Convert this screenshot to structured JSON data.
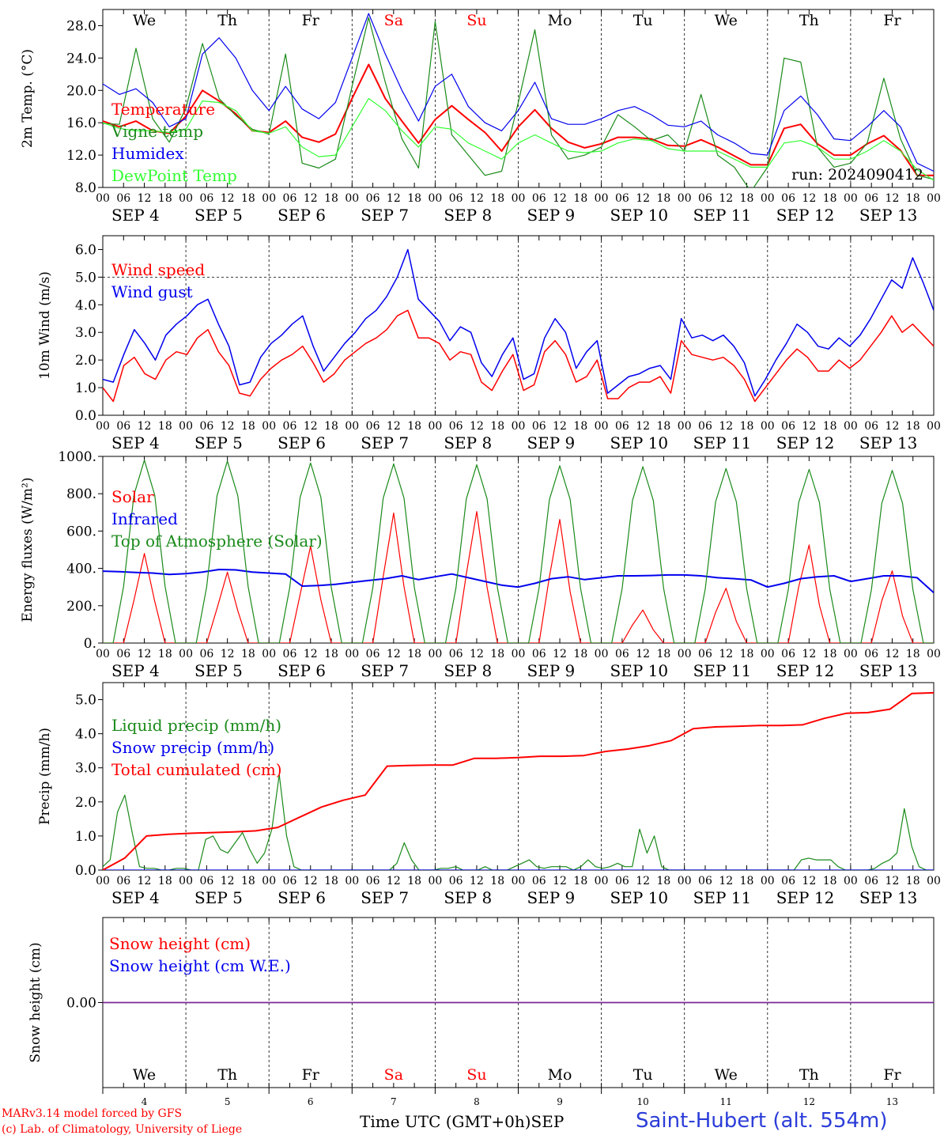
{
  "footer": {
    "credit_line1": "MARv3.14 model forced by GFS",
    "credit_line2": "(c) Lab. of Climatology, University of Liege",
    "x_title": "Time UTC (GMT+0h)",
    "x_month": "SEP",
    "station": "Saint-Hubert (alt. 554m)"
  },
  "axis": {
    "hour_ticks": [
      "00",
      "06",
      "12",
      "18"
    ],
    "days": [
      "4",
      "5",
      "6",
      "7",
      "8",
      "9",
      "10",
      "11",
      "12",
      "13"
    ],
    "month": "SEP",
    "weekdays": [
      "We",
      "Th",
      "Fr",
      "Sa",
      "Su",
      "Mo",
      "Tu",
      "We",
      "Th",
      "Fr"
    ],
    "weekend_color": "#ff0000"
  },
  "colors": {
    "red": "#ff0000",
    "green": "#1a8a1a",
    "blue": "#0000ee",
    "lightgreen": "#33ff33",
    "purple": "#7a2a9a"
  },
  "chart_data": [
    {
      "type": "line",
      "ylabel": "2m Temp. (°C)",
      "ylim": [
        8,
        30
      ],
      "yticks": [
        "8.0",
        "12.0",
        "16.0",
        "20.0",
        "24.0",
        "28.0"
      ],
      "annotation": "run: 2024090412",
      "x_hours_start": "SEP 4 00",
      "x_step_hours": 6,
      "series": [
        {
          "name": "Temperature",
          "color": "#ff0000",
          "values": [
            16.2,
            15.5,
            16.2,
            15.0,
            14.7,
            16.8,
            20.0,
            18.7,
            17.1,
            15.0,
            14.8,
            16.2,
            14.2,
            13.6,
            14.6,
            19.0,
            23.2,
            19.0,
            16.2,
            13.5,
            16.4,
            18.1,
            16.4,
            14.8,
            12.5,
            15.5,
            17.6,
            15.3,
            13.6,
            12.9,
            13.4,
            14.2,
            14.2,
            14.0,
            13.2,
            13.1,
            13.9,
            13.0,
            11.9,
            10.8,
            10.8,
            15.3,
            15.8,
            13.4,
            12.0,
            12.0,
            13.4,
            14.4,
            12.6,
            9.5,
            9.5
          ]
        },
        {
          "name": "Vigne temp",
          "color": "#1a8a1a",
          "values": [
            15.9,
            15.8,
            25.2,
            16.5,
            13.6,
            17.8,
            25.8,
            19.0,
            16.9,
            15.2,
            14.6,
            24.5,
            11.0,
            10.4,
            11.5,
            20.5,
            29.0,
            21.0,
            14.0,
            10.4,
            28.5,
            14.5,
            12.0,
            9.5,
            10.0,
            18.5,
            27.5,
            14.5,
            11.5,
            12.0,
            13.0,
            17.0,
            15.5,
            13.8,
            14.5,
            12.5,
            19.5,
            12.0,
            10.5,
            7.5,
            10.5,
            24.0,
            23.5,
            13.0,
            10.5,
            11.0,
            13.5,
            21.5,
            14.0,
            9.5,
            9.0
          ]
        },
        {
          "name": "Humidex",
          "color": "#0000ee",
          "values": [
            20.8,
            19.5,
            20.2,
            18.5,
            15.5,
            16.5,
            24.5,
            26.5,
            24.0,
            20.0,
            17.5,
            20.5,
            17.7,
            16.5,
            18.5,
            24.0,
            29.5,
            24.5,
            20.0,
            16.2,
            20.5,
            22.0,
            18.0,
            16.0,
            15.0,
            17.5,
            21.0,
            16.5,
            15.8,
            15.8,
            16.5,
            17.5,
            18.0,
            17.0,
            15.7,
            15.5,
            16.2,
            14.5,
            13.5,
            12.2,
            12.0,
            17.5,
            19.3,
            17.0,
            14.0,
            13.8,
            15.5,
            17.5,
            15.5,
            11.0,
            10.0
          ]
        },
        {
          "name": "DewPoint Temp",
          "color": "#33ff33",
          "values": [
            16.0,
            15.3,
            15.0,
            15.0,
            14.8,
            15.2,
            18.7,
            18.5,
            17.5,
            15.0,
            14.7,
            15.5,
            13.0,
            11.8,
            12.0,
            15.5,
            19.0,
            17.5,
            15.0,
            13.0,
            15.5,
            15.2,
            13.5,
            12.5,
            11.5,
            13.5,
            14.5,
            13.5,
            12.5,
            12.3,
            12.5,
            13.5,
            14.0,
            13.8,
            12.8,
            12.5,
            12.5,
            12.5,
            11.5,
            10.5,
            10.5,
            13.5,
            13.8,
            13.0,
            11.5,
            11.5,
            12.5,
            13.8,
            12.5,
            10.2,
            8.9
          ]
        }
      ]
    },
    {
      "type": "line",
      "ylabel": "10m Wind (m/s)",
      "ylim": [
        0,
        6.5
      ],
      "yticks": [
        "0.0",
        "1.0",
        "2.0",
        "3.0",
        "4.0",
        "5.0",
        "6.0"
      ],
      "series": [
        {
          "name": "Wind speed",
          "color": "#ff0000",
          "values": [
            1.0,
            0.5,
            1.8,
            2.1,
            1.5,
            1.3,
            2.0,
            2.3,
            2.2,
            2.8,
            3.1,
            2.3,
            1.8,
            0.8,
            0.7,
            1.3,
            1.7,
            2.0,
            2.2,
            2.5,
            1.9,
            1.2,
            1.5,
            2.0,
            2.3,
            2.6,
            2.8,
            3.1,
            3.6,
            3.8,
            2.8,
            2.8,
            2.6,
            2.0,
            2.3,
            2.2,
            1.2,
            0.9,
            1.6,
            2.2,
            0.9,
            1.1,
            2.3,
            2.7,
            2.2,
            1.2,
            1.4,
            2.0,
            0.6,
            0.6,
            1.0,
            1.2,
            1.2,
            1.4,
            0.8,
            2.7,
            2.2,
            2.1,
            2.0,
            2.1,
            1.8,
            1.3,
            0.5,
            1.0,
            1.5,
            2.0,
            2.4,
            2.1,
            1.6,
            1.6,
            2.0,
            1.7,
            2.0,
            2.5,
            3.0,
            3.6,
            3.0,
            3.3,
            2.9,
            2.5
          ]
        },
        {
          "name": "Wind gust",
          "color": "#0000ee",
          "values": [
            1.3,
            1.2,
            2.2,
            3.1,
            2.6,
            2.0,
            2.9,
            3.3,
            3.6,
            4.0,
            4.2,
            3.3,
            2.5,
            1.1,
            1.2,
            2.1,
            2.6,
            2.9,
            3.3,
            3.6,
            2.5,
            1.6,
            2.1,
            2.6,
            3.0,
            3.5,
            3.8,
            4.3,
            5.0,
            6.0,
            4.2,
            3.8,
            3.4,
            2.7,
            3.2,
            3.0,
            1.9,
            1.4,
            2.2,
            2.8,
            1.3,
            1.5,
            2.8,
            3.5,
            3.0,
            1.7,
            2.3,
            2.7,
            0.8,
            1.1,
            1.4,
            1.5,
            1.7,
            1.8,
            1.3,
            3.5,
            2.8,
            2.9,
            2.7,
            2.9,
            2.5,
            1.9,
            0.7,
            1.3,
            2.0,
            2.6,
            3.3,
            3.0,
            2.5,
            2.4,
            2.8,
            2.5,
            2.9,
            3.5,
            4.2,
            4.9,
            4.6,
            5.7,
            4.8,
            3.8
          ]
        }
      ]
    },
    {
      "type": "line",
      "ylabel": "Energy fluxes (W/m²)",
      "ylim": [
        0,
        1000
      ],
      "yticks": [
        "0.",
        "200.",
        "400.",
        "600.",
        "800.",
        "1000."
      ],
      "series": [
        {
          "name": "Solar",
          "color": "#ff0000",
          "peaks": [
            480,
            380,
            520,
            700,
            710,
            670,
            180,
            300,
            540,
            400
          ]
        },
        {
          "name": "Infrared",
          "color": "#0000ee",
          "values": [
            385,
            382,
            378,
            375,
            368,
            372,
            380,
            394,
            392,
            380,
            375,
            370,
            305,
            308,
            315,
            325,
            335,
            345,
            360,
            340,
            355,
            370,
            350,
            330,
            310,
            300,
            320,
            345,
            355,
            340,
            350,
            360,
            360,
            362,
            365,
            365,
            360,
            350,
            345,
            338,
            300,
            320,
            345,
            355,
            360,
            330,
            345,
            360,
            360,
            350,
            270
          ]
        },
        {
          "name": "Top of Atmosphere (Solar)",
          "color": "#1a8a1a",
          "peaks": [
            980,
            975,
            965,
            960,
            955,
            950,
            945,
            935,
            930,
            925
          ]
        }
      ]
    },
    {
      "type": "line",
      "ylabel": "Precip (mm/h)",
      "ylim": [
        0,
        5.5
      ],
      "yticks": [
        "0.0",
        "1.0",
        "2.0",
        "3.0",
        "4.0",
        "5.0"
      ],
      "series": [
        {
          "name": "Liquid precip (mm/h)",
          "color": "#1a8a1a",
          "values": [
            0.1,
            0.3,
            1.7,
            2.2,
            1.1,
            0.1,
            0.05,
            0.05,
            0.0,
            0.0,
            0.05,
            0.05,
            0.0,
            0.0,
            0.9,
            1.0,
            0.6,
            0.5,
            0.8,
            1.1,
            0.6,
            0.2,
            0.5,
            1.2,
            2.8,
            1.0,
            0.1,
            0.0,
            0.0,
            0.0,
            0.0,
            0.0,
            0.0,
            0.0,
            0.0,
            0.0,
            0.0,
            0.0,
            0.0,
            0.0,
            0.2,
            0.8,
            0.3,
            0.0,
            0.0,
            0.0,
            0.05,
            0.05,
            0.1,
            0.0,
            0.0,
            0.0,
            0.1,
            0.0,
            0.0,
            0.0,
            0.1,
            0.2,
            0.3,
            0.1,
            0.05,
            0.1,
            0.1,
            0.1,
            0.0,
            0.1,
            0.3,
            0.1,
            0.05,
            0.1,
            0.2,
            0.1,
            0.1,
            1.2,
            0.5,
            1.0,
            0.1,
            0.0,
            0.0,
            0.0,
            0.0,
            0.0,
            0.0,
            0.0,
            0.0,
            0.0,
            0.0,
            0.0,
            0.0,
            0.0,
            0.0,
            0.0,
            0.0,
            0.0,
            0.0,
            0.3,
            0.35,
            0.3,
            0.3,
            0.3,
            0.1,
            0.0,
            0.0,
            0.0,
            0.0,
            0.05,
            0.2,
            0.3,
            0.5,
            1.8,
            0.7,
            0.1,
            0.0,
            0.0
          ]
        },
        {
          "name": "Snow precip (mm/h)",
          "color": "#0000ee",
          "values": [
            0,
            0
          ]
        },
        {
          "name": "Total cumulated (cm)",
          "color": "#ff0000",
          "values": [
            0.0,
            0.35,
            1.0,
            1.05,
            1.08,
            1.1,
            1.12,
            1.15,
            1.25,
            1.55,
            1.85,
            2.05,
            2.2,
            3.05,
            3.07,
            3.08,
            3.08,
            3.28,
            3.28,
            3.3,
            3.34,
            3.34,
            3.36,
            3.48,
            3.55,
            3.65,
            3.8,
            4.15,
            4.2,
            4.22,
            4.24,
            4.24,
            4.26,
            4.45,
            4.6,
            4.62,
            4.72,
            5.18,
            5.2
          ]
        }
      ]
    },
    {
      "type": "line",
      "ylabel": "Snow height (cm)",
      "ylim": [
        -1,
        1
      ],
      "yticks": [
        "0.00"
      ],
      "series": [
        {
          "name": "Snow height (cm)",
          "color": "#ff0000",
          "values": [
            0,
            0
          ]
        },
        {
          "name": "Snow height (cm W.E.)",
          "color": "#0000ee",
          "values": [
            0,
            0
          ]
        }
      ]
    }
  ]
}
